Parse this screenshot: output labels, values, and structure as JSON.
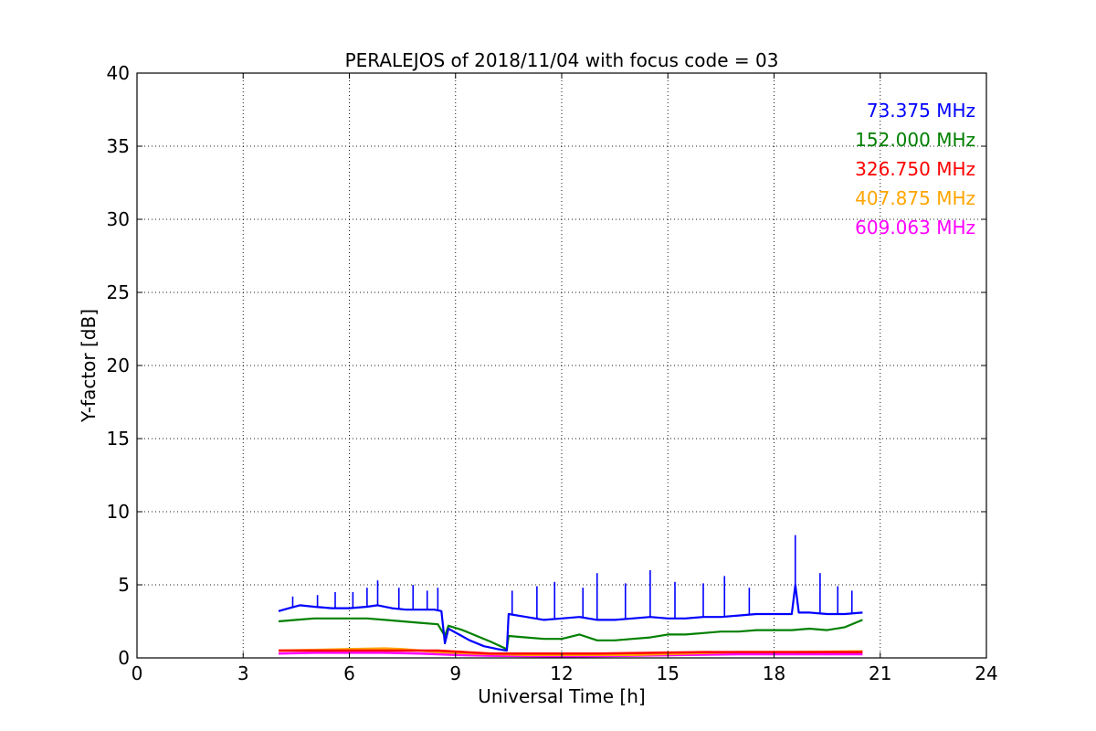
{
  "chart_data": {
    "type": "line",
    "title": "PERALEJOS of 2018/11/04 with focus code = 03",
    "xlabel": "Universal Time [h]",
    "ylabel": "Y-factor [dB]",
    "xlim": [
      0,
      24
    ],
    "ylim": [
      0,
      40
    ],
    "xticks": [
      0,
      3,
      6,
      9,
      12,
      15,
      18,
      21,
      24
    ],
    "yticks": [
      0,
      5,
      10,
      15,
      20,
      25,
      30,
      35,
      40
    ],
    "xtick_labels": [
      "0",
      "3",
      "6",
      "9",
      "12",
      "15",
      "18",
      "21",
      "24"
    ],
    "ytick_labels": [
      "0",
      "5",
      "10",
      "15",
      "20",
      "25",
      "30",
      "35",
      "40"
    ],
    "grid": true,
    "legend_position": "top-right",
    "series": [
      {
        "name": "73.375 MHz",
        "color": "#0000ff",
        "points": [
          [
            4.0,
            3.2
          ],
          [
            4.3,
            3.4
          ],
          [
            4.6,
            3.6
          ],
          [
            5.0,
            3.5
          ],
          [
            5.5,
            3.4
          ],
          [
            6.0,
            3.4
          ],
          [
            6.5,
            3.5
          ],
          [
            6.8,
            3.6
          ],
          [
            7.2,
            3.4
          ],
          [
            7.6,
            3.3
          ],
          [
            8.0,
            3.3
          ],
          [
            8.4,
            3.3
          ],
          [
            8.6,
            3.2
          ],
          [
            8.7,
            1.0
          ],
          [
            8.8,
            2.0
          ],
          [
            9.1,
            1.6
          ],
          [
            9.4,
            1.2
          ],
          [
            9.8,
            0.8
          ],
          [
            10.2,
            0.6
          ],
          [
            10.45,
            0.5
          ],
          [
            10.5,
            3.0
          ],
          [
            11.0,
            2.8
          ],
          [
            11.5,
            2.6
          ],
          [
            12.0,
            2.7
          ],
          [
            12.5,
            2.8
          ],
          [
            13.0,
            2.6
          ],
          [
            13.5,
            2.6
          ],
          [
            14.0,
            2.7
          ],
          [
            14.5,
            2.8
          ],
          [
            15.0,
            2.7
          ],
          [
            15.5,
            2.7
          ],
          [
            16.0,
            2.8
          ],
          [
            16.5,
            2.8
          ],
          [
            17.0,
            2.9
          ],
          [
            17.5,
            3.0
          ],
          [
            18.0,
            3.0
          ],
          [
            18.5,
            3.0
          ],
          [
            18.6,
            5.0
          ],
          [
            18.7,
            3.1
          ],
          [
            19.0,
            3.1
          ],
          [
            19.5,
            3.0
          ],
          [
            20.0,
            3.0
          ],
          [
            20.5,
            3.1
          ]
        ],
        "spikes": [
          [
            4.4,
            4.2
          ],
          [
            5.1,
            4.3
          ],
          [
            5.6,
            4.5
          ],
          [
            6.1,
            4.5
          ],
          [
            6.5,
            4.8
          ],
          [
            6.8,
            5.3
          ],
          [
            7.4,
            4.8
          ],
          [
            7.8,
            5.0
          ],
          [
            8.2,
            4.6
          ],
          [
            8.5,
            4.8
          ],
          [
            10.6,
            4.6
          ],
          [
            11.3,
            4.9
          ],
          [
            11.8,
            5.2
          ],
          [
            12.6,
            4.8
          ],
          [
            13.0,
            5.8
          ],
          [
            13.8,
            5.1
          ],
          [
            14.5,
            6.0
          ],
          [
            15.2,
            5.2
          ],
          [
            16.0,
            5.1
          ],
          [
            16.6,
            5.6
          ],
          [
            17.3,
            4.8
          ],
          [
            18.6,
            8.4
          ],
          [
            19.3,
            5.8
          ],
          [
            19.8,
            4.9
          ],
          [
            20.2,
            4.6
          ]
        ]
      },
      {
        "name": "152.000 MHz",
        "color": "#008000",
        "points": [
          [
            4.0,
            2.5
          ],
          [
            4.5,
            2.6
          ],
          [
            5.0,
            2.7
          ],
          [
            5.5,
            2.7
          ],
          [
            6.0,
            2.7
          ],
          [
            6.5,
            2.7
          ],
          [
            7.0,
            2.6
          ],
          [
            7.5,
            2.5
          ],
          [
            8.0,
            2.4
          ],
          [
            8.5,
            2.3
          ],
          [
            8.7,
            1.5
          ],
          [
            8.8,
            2.2
          ],
          [
            9.2,
            1.9
          ],
          [
            9.6,
            1.5
          ],
          [
            10.0,
            1.1
          ],
          [
            10.45,
            0.6
          ],
          [
            10.5,
            1.5
          ],
          [
            11.0,
            1.4
          ],
          [
            11.5,
            1.3
          ],
          [
            12.0,
            1.3
          ],
          [
            12.5,
            1.6
          ],
          [
            13.0,
            1.2
          ],
          [
            13.5,
            1.2
          ],
          [
            14.0,
            1.3
          ],
          [
            14.5,
            1.4
          ],
          [
            15.0,
            1.6
          ],
          [
            15.5,
            1.6
          ],
          [
            16.0,
            1.7
          ],
          [
            16.5,
            1.8
          ],
          [
            17.0,
            1.8
          ],
          [
            17.5,
            1.9
          ],
          [
            18.0,
            1.9
          ],
          [
            18.5,
            1.9
          ],
          [
            19.0,
            2.0
          ],
          [
            19.5,
            1.9
          ],
          [
            20.0,
            2.1
          ],
          [
            20.5,
            2.6
          ]
        ],
        "spikes": []
      },
      {
        "name": "326.750 MHz",
        "color": "#ff0000",
        "points": [
          [
            4.0,
            0.5
          ],
          [
            8.5,
            0.5
          ],
          [
            10.0,
            0.3
          ],
          [
            13.0,
            0.3
          ],
          [
            16.0,
            0.4
          ],
          [
            20.5,
            0.4
          ]
        ],
        "spikes": []
      },
      {
        "name": "407.875 MHz",
        "color": "#ffa500",
        "points": [
          [
            4.0,
            0.5
          ],
          [
            5.0,
            0.55
          ],
          [
            6.0,
            0.6
          ],
          [
            7.0,
            0.65
          ],
          [
            7.5,
            0.6
          ],
          [
            8.5,
            0.4
          ],
          [
            9.5,
            0.3
          ],
          [
            11.0,
            0.2
          ],
          [
            12.5,
            0.2
          ],
          [
            14.0,
            0.2
          ],
          [
            15.5,
            0.3
          ],
          [
            17.0,
            0.4
          ],
          [
            18.5,
            0.4
          ],
          [
            20.5,
            0.45
          ]
        ],
        "spikes": []
      },
      {
        "name": "609.063 MHz",
        "color": "#ff00ff",
        "points": [
          [
            4.0,
            0.3
          ],
          [
            5.0,
            0.35
          ],
          [
            6.0,
            0.35
          ],
          [
            7.0,
            0.35
          ],
          [
            8.0,
            0.3
          ],
          [
            9.0,
            0.2
          ],
          [
            10.0,
            0.15
          ],
          [
            12.0,
            0.1
          ],
          [
            14.0,
            0.15
          ],
          [
            15.5,
            0.2
          ],
          [
            17.0,
            0.25
          ],
          [
            18.5,
            0.25
          ],
          [
            20.5,
            0.25
          ]
        ],
        "spikes": []
      }
    ]
  }
}
